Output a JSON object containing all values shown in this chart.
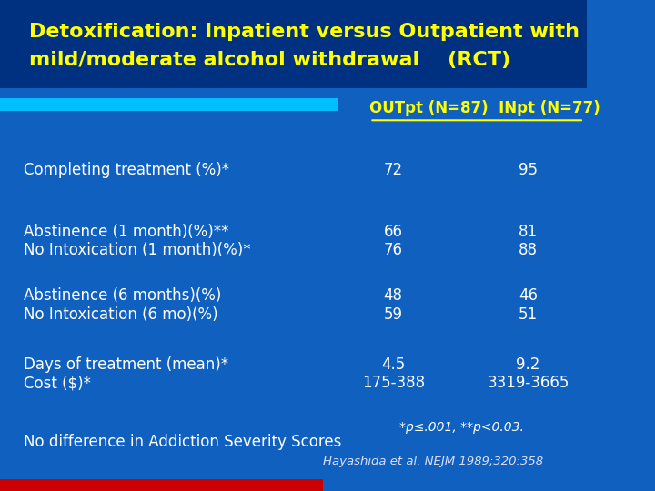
{
  "title_line1": "Detoxification: Inpatient versus Outpatient with",
  "title_line2": "mild/moderate alcohol withdrawal    (RCT)",
  "title_color": "#FFFF00",
  "bg_color_top": "#003080",
  "bg_color_bottom": "#1060C0",
  "header_out": "OUTpt ",
  "header_out_sub": "(N=87)",
  "header_in": "  INpt ",
  "header_in_sub": "(N=77)",
  "header_color": "#FFFF00",
  "divider_color": "#00BFFF",
  "rows": [
    {
      "label": "Completing treatment (%)*",
      "out": "72",
      "inp": "95"
    },
    {
      "label": "Abstinence (1 month)(%)**\nNo Intoxication (1 month)(%)*",
      "out": "66\n76",
      "inp": "81\n88"
    },
    {
      "label": "Abstinence (6 months)(%)\nNo Intoxication (6 mo)(%)",
      "out": "48\n59",
      "inp": "46\n51"
    },
    {
      "label": "Days of treatment (mean)*\nCost ($)*",
      "out": "4.5\n175-388",
      "inp": "9.2\n3319-3665"
    }
  ],
  "footer_left": "No difference in Addiction Severity Scores",
  "footer_right1": "*p≤.001, **p<0.03.",
  "footer_right2": "Hayashida et al. NEJM 1989;320:358",
  "text_color": "#FFFFFF",
  "footer_italic_color": "#DDDDFF"
}
